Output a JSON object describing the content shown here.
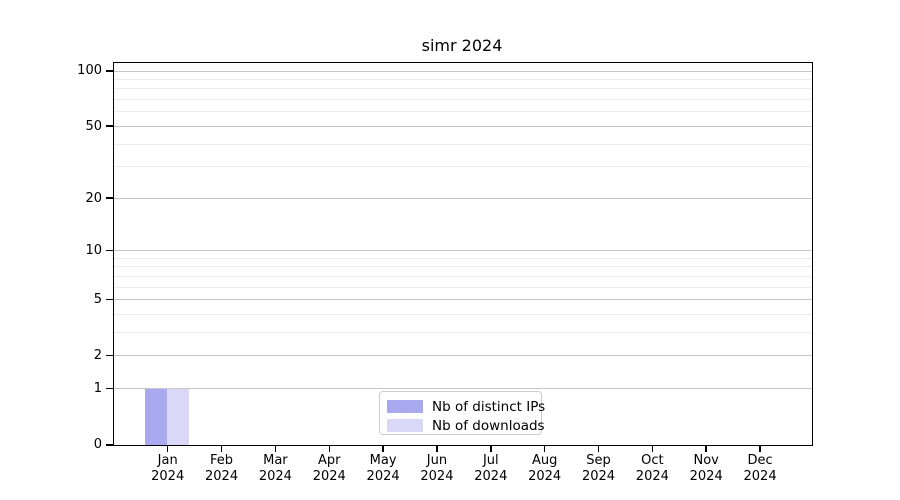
{
  "chart_data": {
    "type": "bar",
    "title": "simr 2024",
    "categories": [
      {
        "month": "Jan",
        "year": "2024"
      },
      {
        "month": "Feb",
        "year": "2024"
      },
      {
        "month": "Mar",
        "year": "2024"
      },
      {
        "month": "Apr",
        "year": "2024"
      },
      {
        "month": "May",
        "year": "2024"
      },
      {
        "month": "Jun",
        "year": "2024"
      },
      {
        "month": "Jul",
        "year": "2024"
      },
      {
        "month": "Aug",
        "year": "2024"
      },
      {
        "month": "Sep",
        "year": "2024"
      },
      {
        "month": "Oct",
        "year": "2024"
      },
      {
        "month": "Nov",
        "year": "2024"
      },
      {
        "month": "Dec",
        "year": "2024"
      }
    ],
    "series": [
      {
        "name": "Nb of distinct IPs",
        "color": "#a9a9f0",
        "values": [
          1,
          0,
          0,
          0,
          0,
          0,
          0,
          0,
          0,
          0,
          0,
          0
        ]
      },
      {
        "name": "Nb of downloads",
        "color": "#d9d9f7",
        "values": [
          1,
          0,
          0,
          0,
          0,
          0,
          0,
          0,
          0,
          0,
          0,
          0
        ]
      }
    ],
    "y_scale": "log1p",
    "y_major_ticks": [
      0,
      1,
      2,
      5,
      10,
      20,
      50,
      100
    ],
    "y_minor_ticks": [
      3,
      4,
      6,
      7,
      8,
      9,
      30,
      40,
      60,
      70,
      80,
      90
    ],
    "ylim": [
      0,
      110.5
    ],
    "xlabel": "",
    "ylabel": "",
    "grid": "horizontal",
    "legend_position": "lower center inside plot"
  },
  "colors": {
    "grid_major": "#c6c6c6",
    "grid_minor": "#ececec",
    "spine": "#000000",
    "background": "#ffffff"
  }
}
